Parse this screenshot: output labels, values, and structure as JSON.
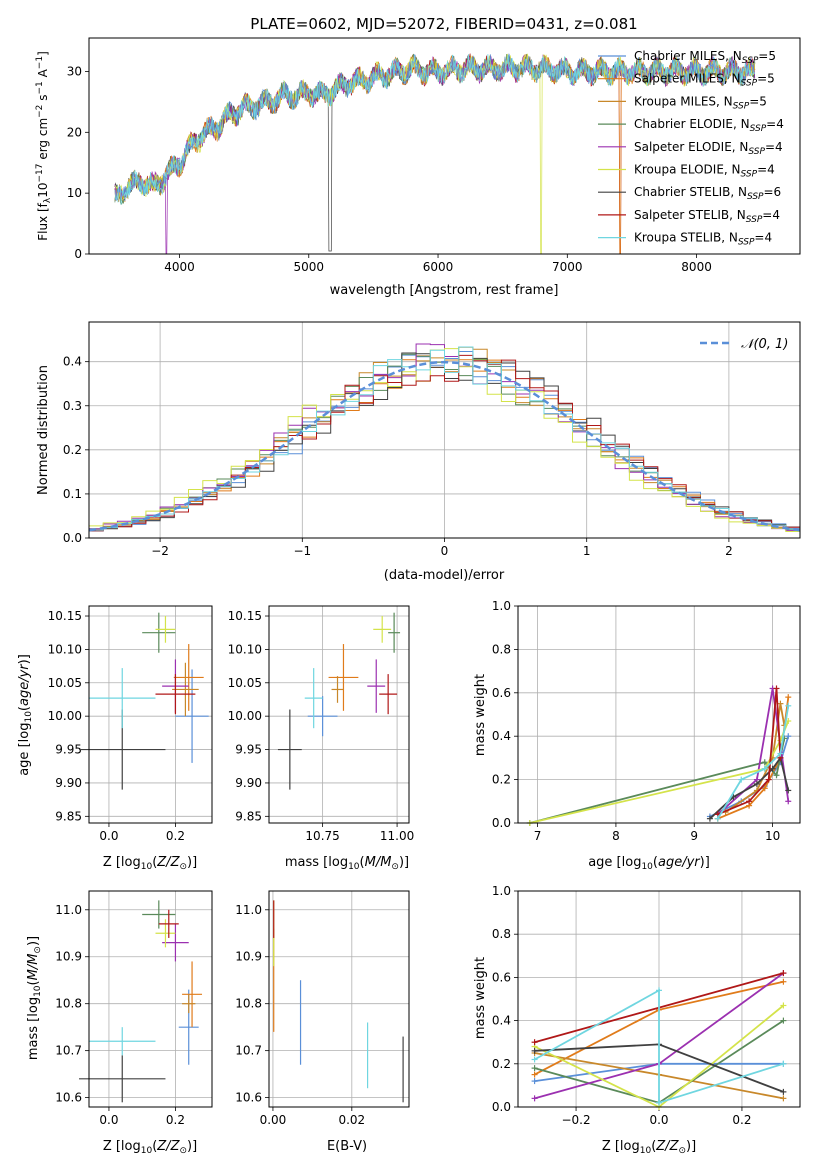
{
  "chart_data": [
    {
      "id": "spectrum",
      "type": "line",
      "title": "PLATE=0602, MJD=52072, FIBERID=0431, z=0.081",
      "xlabel": "wavelength [Angstrom, rest frame]",
      "ylabel": "Flux [fλ10⁻¹⁷ erg cm⁻² s⁻¹ A⁻¹]",
      "xlim": [
        3300,
        8800
      ],
      "ylim": [
        0,
        35.5
      ],
      "xticks": [
        4000,
        5000,
        6000,
        7000,
        8000
      ],
      "yticks": [
        0,
        10,
        20,
        30
      ],
      "legend_position": "right",
      "series": [
        {
          "name": "Chabrier MILES, N_SSP=5",
          "color": "#5a8fd8"
        },
        {
          "name": "Salpeter MILES, N_SSP=5",
          "color": "#e07b1a"
        },
        {
          "name": "Kroupa MILES, N_SSP=5",
          "color": "#c8882a"
        },
        {
          "name": "Chabrier ELODIE, N_SSP=4",
          "color": "#5a8a5a"
        },
        {
          "name": "Salpeter ELODIE, N_SSP=4",
          "color": "#9b30b0"
        },
        {
          "name": "Kroupa ELODIE, N_SSP=4",
          "color": "#d4e34a"
        },
        {
          "name": "Chabrier STELIB, N_SSP=6",
          "color": "#404040"
        },
        {
          "name": "Salpeter STELIB, N_SSP=4",
          "color": "#b01818"
        },
        {
          "name": "Kroupa STELIB, N_SSP=4",
          "color": "#6fd6e0"
        }
      ],
      "anchor_points": {
        "x": [
          3500,
          3600,
          3700,
          3800,
          3900,
          4000,
          4100,
          4200,
          4300,
          4400,
          4500,
          4600,
          4700,
          4800,
          4900,
          5000,
          5100,
          5200,
          5300,
          5400,
          5500,
          5600,
          5700,
          5800,
          5900,
          6000,
          6200,
          6400,
          6600,
          6800,
          7000,
          7200,
          7400,
          7600,
          7800,
          8000,
          8200,
          8400
        ],
        "y": [
          9,
          11,
          12,
          11,
          13,
          15,
          18,
          20,
          21,
          23,
          24,
          24.5,
          25,
          26,
          26,
          26.5,
          26,
          27,
          28,
          28.5,
          29,
          29.5,
          30,
          30.5,
          30,
          30,
          30.5,
          30.5,
          30.5,
          30.5,
          30,
          30,
          30,
          30,
          30,
          30,
          30,
          30
        ]
      }
    },
    {
      "id": "residuals",
      "type": "line",
      "xlabel": "(data-model)/error",
      "ylabel": "Normed distribution",
      "xlim": [
        -2.5,
        2.5
      ],
      "ylim": [
        0,
        0.49
      ],
      "xticks": [
        -2,
        -1,
        0,
        1,
        2
      ],
      "yticks": [
        0.0,
        0.1,
        0.2,
        0.3,
        0.4
      ],
      "legend": "N(0,1)",
      "legend_position": "top-right",
      "bin_width": 0.1
    },
    {
      "id": "age_vs_Z",
      "type": "scatter",
      "xlabel": "Z [log10(Z/Z⊙)]",
      "ylabel": "age  [log10(age/yr)]",
      "xlim": [
        -0.06,
        0.31
      ],
      "ylim": [
        9.84,
        10.165
      ],
      "xticks": [
        0.0,
        0.2
      ],
      "yticks": [
        9.85,
        9.9,
        9.95,
        10.0,
        10.05,
        10.1,
        10.15
      ],
      "points": [
        {
          "series": "Chabrier MILES",
          "x": 0.25,
          "y": 10.0,
          "xerr": 0.05,
          "yerr": 0.07
        },
        {
          "series": "Salpeter MILES",
          "x": 0.24,
          "y": 10.058,
          "xerr": 0.045,
          "yerr": 0.05
        },
        {
          "series": "Kroupa MILES",
          "x": 0.23,
          "y": 10.04,
          "xerr": 0.04,
          "yerr": 0.04
        },
        {
          "series": "Chabrier ELODIE",
          "x": 0.15,
          "y": 10.125,
          "xerr": 0.05,
          "yerr": 0.03
        },
        {
          "series": "Salpeter ELODIE",
          "x": 0.2,
          "y": 10.045,
          "xerr": 0.04,
          "yerr": 0.04
        },
        {
          "series": "Kroupa ELODIE",
          "x": 0.17,
          "y": 10.13,
          "xerr": 0.03,
          "yerr": 0.02
        },
        {
          "series": "Chabrier STELIB",
          "x": 0.04,
          "y": 9.95,
          "xerr": 0.13,
          "yerr": 0.06
        },
        {
          "series": "Salpeter STELIB",
          "x": 0.2,
          "y": 10.033,
          "xerr": 0.06,
          "yerr": 0.03
        },
        {
          "series": "Kroupa STELIB",
          "x": 0.04,
          "y": 10.027,
          "xerr": 0.1,
          "yerr": 0.045
        }
      ]
    },
    {
      "id": "age_vs_mass",
      "type": "scatter",
      "xlabel": "mass [log10(M/M⊙)]",
      "ylabel": "",
      "xlim": [
        10.57,
        11.04
      ],
      "ylim": [
        9.84,
        10.165
      ],
      "xticks": [
        10.75,
        11.0
      ],
      "yticks": [
        9.85,
        9.9,
        9.95,
        10.0,
        10.05,
        10.1,
        10.15
      ],
      "points": [
        {
          "series": "Chabrier MILES",
          "x": 10.75,
          "y": 10.0,
          "xerr": 0.05,
          "yerr": 0.03
        },
        {
          "series": "Salpeter MILES",
          "x": 10.82,
          "y": 10.058,
          "xerr": 0.05,
          "yerr": 0.05
        },
        {
          "series": "Kroupa MILES",
          "x": 10.8,
          "y": 10.04,
          "xerr": 0.02,
          "yerr": 0.02
        },
        {
          "series": "Chabrier ELODIE",
          "x": 10.99,
          "y": 10.125,
          "xerr": 0.02,
          "yerr": 0.03
        },
        {
          "series": "Salpeter ELODIE",
          "x": 10.93,
          "y": 10.045,
          "xerr": 0.03,
          "yerr": 0.04
        },
        {
          "series": "Kroupa ELODIE",
          "x": 10.95,
          "y": 10.13,
          "xerr": 0.03,
          "yerr": 0.02
        },
        {
          "series": "Chabrier STELIB",
          "x": 10.64,
          "y": 9.95,
          "xerr": 0.04,
          "yerr": 0.06
        },
        {
          "series": "Salpeter STELIB",
          "x": 10.97,
          "y": 10.033,
          "xerr": 0.03,
          "yerr": 0.03
        },
        {
          "series": "Kroupa STELIB",
          "x": 10.72,
          "y": 10.027,
          "xerr": 0.03,
          "yerr": 0.045
        }
      ]
    },
    {
      "id": "weight_vs_age",
      "type": "line",
      "xlabel": "age  [log10(age/yr)]",
      "ylabel": "mass weight",
      "xlim": [
        6.75,
        10.35
      ],
      "ylim": [
        0,
        1
      ],
      "xticks": [
        7,
        8,
        9,
        10
      ],
      "yticks": [
        0.0,
        0.2,
        0.4,
        0.6,
        0.8,
        1.0
      ],
      "series": [
        {
          "name": "Chabrier MILES",
          "x": [
            9.2,
            9.6,
            9.9,
            10.1,
            10.2
          ],
          "y": [
            0.03,
            0.1,
            0.17,
            0.28,
            0.4
          ]
        },
        {
          "name": "Salpeter MILES",
          "x": [
            9.3,
            9.7,
            9.9,
            10.1,
            10.2
          ],
          "y": [
            0.02,
            0.08,
            0.16,
            0.3,
            0.58
          ]
        },
        {
          "name": "Kroupa MILES",
          "x": [
            9.4,
            9.8,
            10.0,
            10.1,
            10.15
          ],
          "y": [
            0.05,
            0.15,
            0.3,
            0.55,
            0.45
          ]
        },
        {
          "name": "Chabrier ELODIE",
          "x": [
            6.9,
            9.9,
            10.05,
            10.15
          ],
          "y": [
            0.0,
            0.28,
            0.22,
            0.39
          ]
        },
        {
          "name": "Salpeter ELODIE",
          "x": [
            9.3,
            9.8,
            10.0,
            10.2
          ],
          "y": [
            0.04,
            0.2,
            0.62,
            0.1
          ]
        },
        {
          "name": "Kroupa ELODIE",
          "x": [
            6.9,
            9.9,
            10.1,
            10.2
          ],
          "y": [
            0.0,
            0.25,
            0.38,
            0.47
          ]
        },
        {
          "name": "Chabrier STELIB",
          "x": [
            9.2,
            9.5,
            9.8,
            10.0,
            10.1,
            10.2
          ],
          "y": [
            0.02,
            0.12,
            0.18,
            0.25,
            0.3,
            0.15
          ]
        },
        {
          "name": "Salpeter STELIB",
          "x": [
            9.3,
            9.7,
            9.95,
            10.05,
            10.1
          ],
          "y": [
            0.04,
            0.1,
            0.2,
            0.62,
            0.3
          ]
        },
        {
          "name": "Kroupa STELIB",
          "x": [
            9.3,
            9.6,
            9.9,
            10.1,
            10.2
          ],
          "y": [
            0.02,
            0.2,
            0.25,
            0.32,
            0.54
          ]
        }
      ]
    },
    {
      "id": "mass_vs_Z",
      "type": "scatter",
      "xlabel": "Z [log10(Z/Z⊙)]",
      "ylabel": "mass [log10(M/M⊙)]",
      "xlim": [
        -0.06,
        0.31
      ],
      "ylim": [
        10.58,
        11.04
      ],
      "xticks": [
        0.0,
        0.2
      ],
      "yticks": [
        10.6,
        10.7,
        10.8,
        10.9,
        11.0
      ],
      "points": [
        {
          "series": "Chabrier MILES",
          "x": 0.24,
          "y": 10.75,
          "xerr": 0.03,
          "yerr": 0.08
        },
        {
          "series": "Salpeter MILES",
          "x": 0.25,
          "y": 10.82,
          "xerr": 0.03,
          "yerr": 0.07
        },
        {
          "series": "Kroupa MILES",
          "x": 0.24,
          "y": 10.8,
          "xerr": 0.02,
          "yerr": 0.02
        },
        {
          "series": "Chabrier ELODIE",
          "x": 0.15,
          "y": 10.99,
          "xerr": 0.05,
          "yerr": 0.03
        },
        {
          "series": "Salpeter ELODIE",
          "x": 0.2,
          "y": 10.93,
          "xerr": 0.04,
          "yerr": 0.04
        },
        {
          "series": "Kroupa ELODIE",
          "x": 0.17,
          "y": 10.95,
          "xerr": 0.03,
          "yerr": 0.03
        },
        {
          "series": "Chabrier STELIB",
          "x": 0.04,
          "y": 10.64,
          "xerr": 0.13,
          "yerr": 0.05
        },
        {
          "series": "Salpeter STELIB",
          "x": 0.18,
          "y": 10.97,
          "xerr": 0.03,
          "yerr": 0.03
        },
        {
          "series": "Kroupa STELIB",
          "x": 0.04,
          "y": 10.72,
          "xerr": 0.1,
          "yerr": 0.03
        }
      ]
    },
    {
      "id": "mass_vs_ebv",
      "type": "scatter",
      "xlabel": "E(B-V)",
      "ylabel": "",
      "xlim": [
        -0.001,
        0.0345
      ],
      "ylim": [
        10.58,
        11.04
      ],
      "xticks": [
        0.0,
        0.02
      ],
      "yticks": [
        10.6,
        10.7,
        10.8,
        10.9,
        11.0
      ],
      "points": [
        {
          "series": "Chabrier MILES",
          "x": 0.007,
          "y": 10.76,
          "yerr": 0.09
        },
        {
          "series": "Salpeter MILES",
          "x": 0.0002,
          "y": 10.85,
          "yerr": 0.11
        },
        {
          "series": "Kroupa ELODIE",
          "x": 0.0002,
          "y": 10.95,
          "yerr": 0.07
        },
        {
          "series": "Salpeter STELIB",
          "x": 0.0002,
          "y": 10.98,
          "yerr": 0.04
        },
        {
          "series": "Chabrier STELIB",
          "x": 0.033,
          "y": 10.66,
          "yerr": 0.07
        },
        {
          "series": "Kroupa STELIB",
          "x": 0.024,
          "y": 10.69,
          "yerr": 0.07
        }
      ]
    },
    {
      "id": "weight_vs_Z",
      "type": "line",
      "xlabel": "Z [log10(Z/Z⊙)]",
      "ylabel": "mass weight",
      "xlim": [
        -0.34,
        0.34
      ],
      "ylim": [
        0,
        1
      ],
      "xticks": [
        -0.2,
        0.0,
        0.2
      ],
      "yticks": [
        0.0,
        0.2,
        0.4,
        0.6,
        0.8,
        1.0
      ],
      "series": [
        {
          "name": "Chabrier MILES",
          "x": [
            -0.3,
            0.0,
            0.3
          ],
          "y": [
            0.12,
            0.2,
            0.2
          ]
        },
        {
          "name": "Salpeter MILES",
          "x": [
            -0.3,
            0.0,
            0.3
          ],
          "y": [
            0.15,
            0.45,
            0.58
          ]
        },
        {
          "name": "Kroupa MILES",
          "x": [
            -0.3,
            0.0,
            0.3
          ],
          "y": [
            0.25,
            0.15,
            0.04
          ]
        },
        {
          "name": "Chabrier ELODIE",
          "x": [
            -0.3,
            0.0,
            0.3
          ],
          "y": [
            0.18,
            0.02,
            0.4
          ]
        },
        {
          "name": "Salpeter ELODIE",
          "x": [
            -0.3,
            0.0,
            0.3
          ],
          "y": [
            0.04,
            0.2,
            0.62
          ]
        },
        {
          "name": "Kroupa ELODIE",
          "x": [
            -0.3,
            0.0,
            0.3
          ],
          "y": [
            0.28,
            0.0,
            0.47
          ]
        },
        {
          "name": "Chabrier STELIB",
          "x": [
            -0.3,
            0.0,
            0.3
          ],
          "y": [
            0.26,
            0.29,
            0.07
          ]
        },
        {
          "name": "Salpeter STELIB",
          "x": [
            -0.3,
            0.3
          ],
          "y": [
            0.3,
            0.62
          ]
        },
        {
          "name": "Kroupa STELIB",
          "x": [
            -0.3,
            0.0,
            0.0,
            0.3
          ],
          "y": [
            0.22,
            0.54,
            0.02,
            0.2
          ]
        }
      ]
    }
  ]
}
